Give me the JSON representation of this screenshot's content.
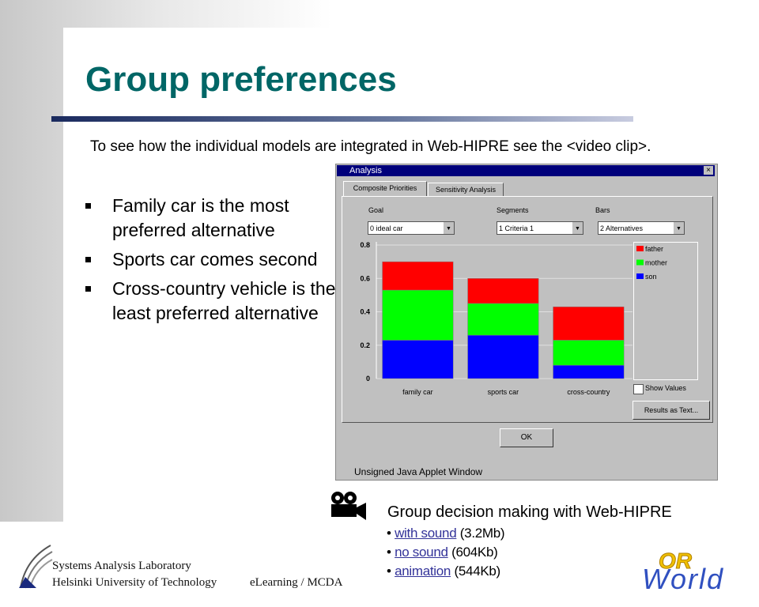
{
  "title": "Group preferences",
  "intro": "To see how the individual models are integrated in Web-HIPRE see the <video clip>.",
  "bullets": [
    "Family car is the most preferred alternative",
    "Sports car comes second",
    "Cross-country vehicle is the least preferred alternative"
  ],
  "window": {
    "title": "Analysis",
    "tabs": [
      "Composite Priorities",
      "Sensitivity Analysis"
    ],
    "dropdowns": [
      {
        "label": "Goal",
        "value": "0 ideal car"
      },
      {
        "label": "Segments",
        "value": "1 Criteria 1"
      },
      {
        "label": "Bars",
        "value": "2 Alternatives"
      }
    ],
    "show_values": "Show Values",
    "results_button": "Results as Text...",
    "ok_button": "OK",
    "status": "Unsigned Java Applet Window",
    "chart": {
      "type": "bar",
      "stacked": true,
      "categories": [
        "family car",
        "sports car",
        "cross-country"
      ],
      "series": [
        {
          "name": "father",
          "color": "#ff0000",
          "values": [
            0.17,
            0.15,
            0.2
          ]
        },
        {
          "name": "mother",
          "color": "#00ff00",
          "values": [
            0.3,
            0.19,
            0.15
          ]
        },
        {
          "name": "son",
          "color": "#0000ff",
          "values": [
            0.23,
            0.26,
            0.08
          ]
        }
      ],
      "ylim": [
        0,
        0.8
      ],
      "yticks": [
        0,
        0.2,
        0.4,
        0.6,
        0.8
      ],
      "grid": true
    }
  },
  "video": {
    "heading": "Group decision making with Web-HIPRE",
    "links": [
      {
        "link": "with sound",
        "size": "(3.2Mb)"
      },
      {
        "link": "no sound",
        "size": "(604Kb)"
      },
      {
        "link": "animation",
        "size": "(544Kb)"
      }
    ]
  },
  "footer": {
    "lab": "Systems Analysis Laboratory",
    "university": "Helsinki University of Technology",
    "course": "eLearning / MCDA",
    "logo_top": "OR",
    "logo_bottom": "World"
  }
}
